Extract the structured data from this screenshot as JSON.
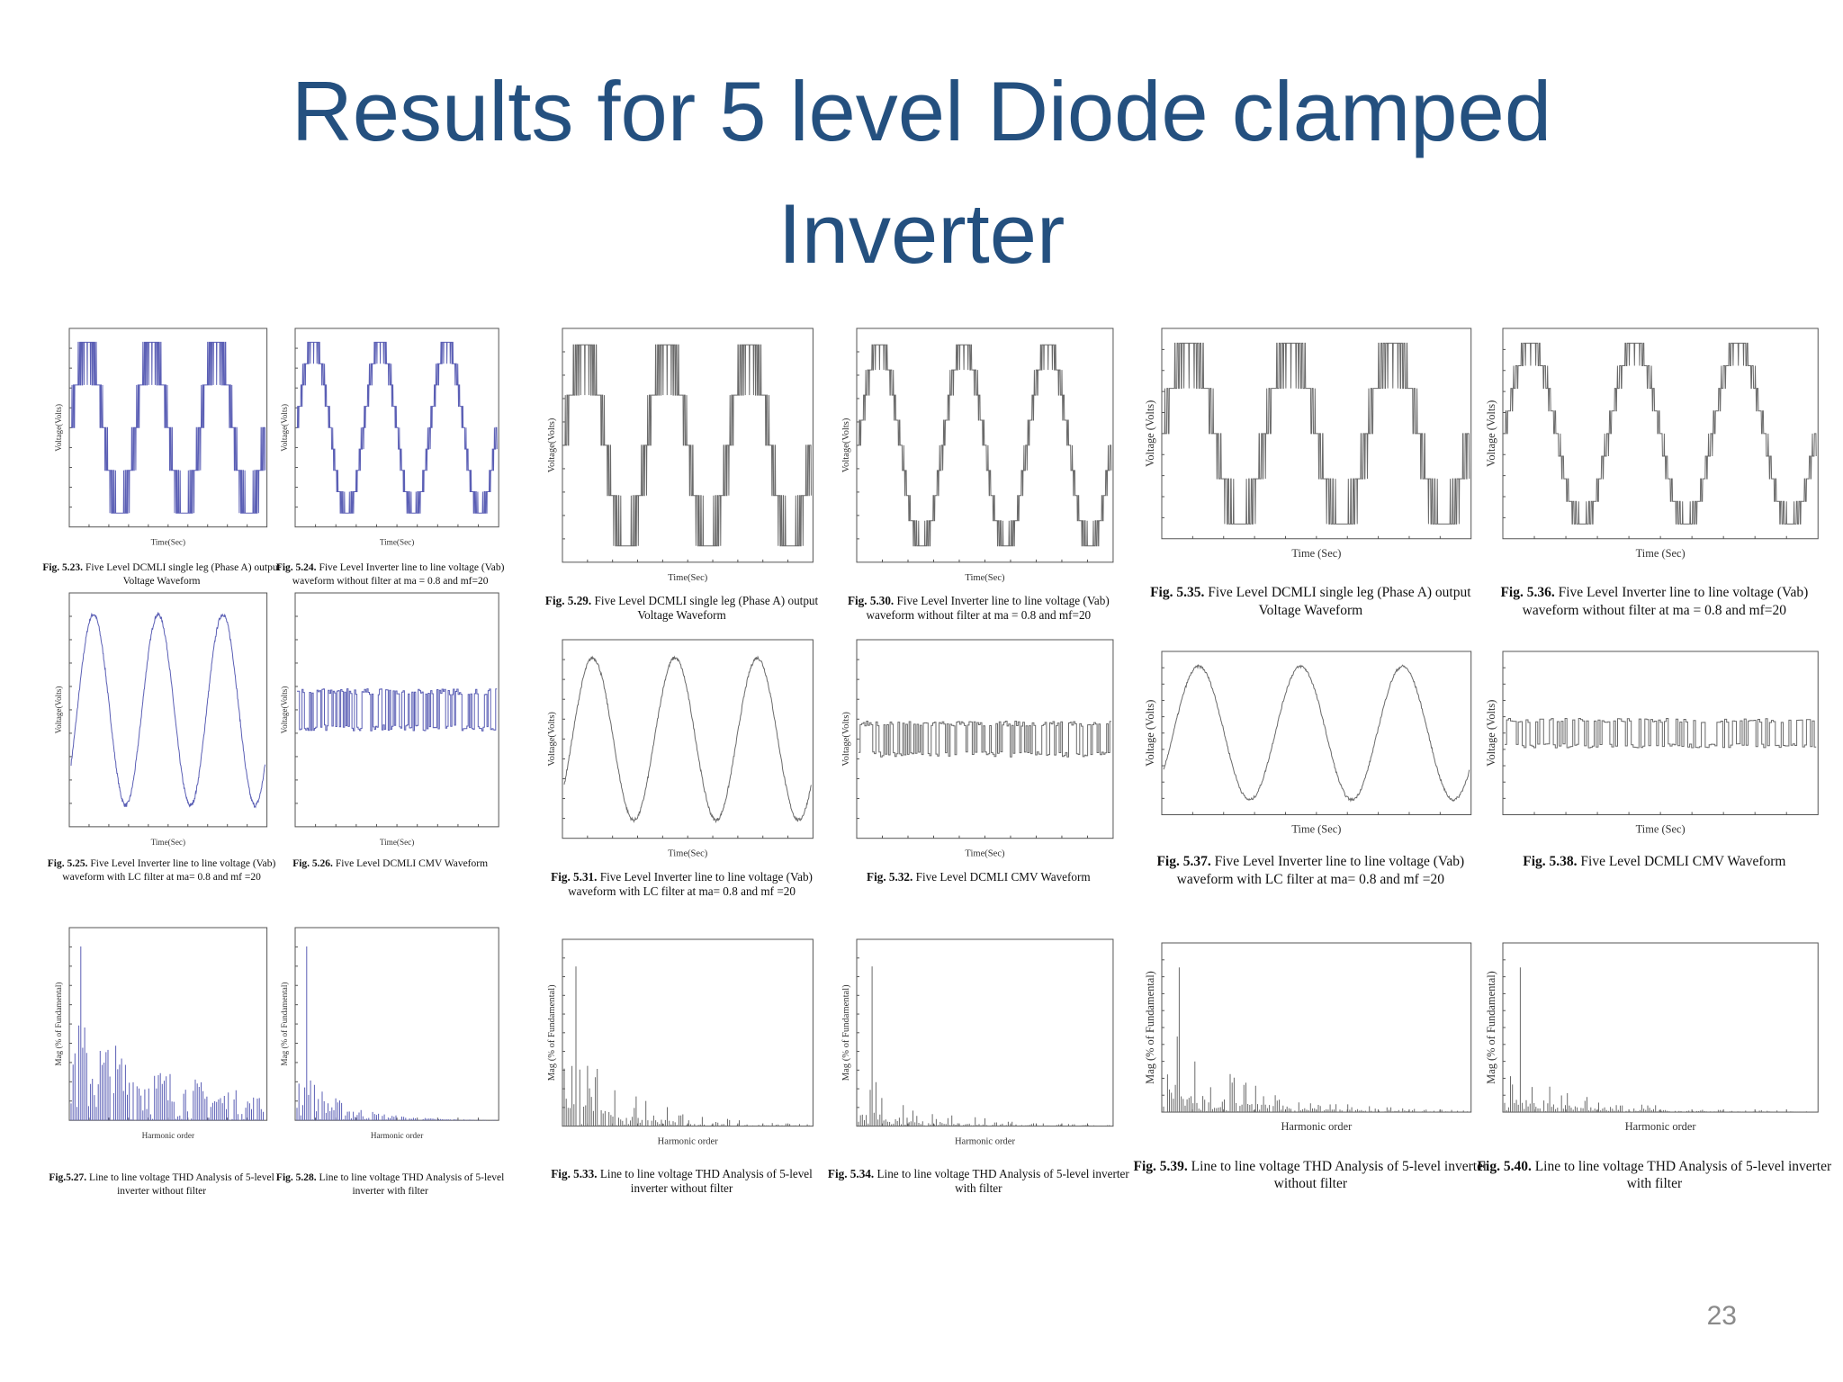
{
  "header": {
    "title": "Results for 5 level Diode clamped Inverter"
  },
  "figures": [
    {
      "label": "Fig. 5.23.",
      "caption": "Five Level DCMLI single leg (Phase A) output Voltage Waveform",
      "xlabel": "Time(Sec)",
      "ylabel": "Voltage(Volts)"
    },
    {
      "label": "Fig. 5.24.",
      "caption": "Five Level Inverter line to line voltage (Vab) waveform without filter at ma = 0.8 and mf=20",
      "xlabel": "Time(Sec)",
      "ylabel": "Voltage(Volts)"
    },
    {
      "label": "Fig. 5.25.",
      "caption": "Five Level Inverter line to line voltage (Vab) waveform with LC filter at ma= 0.8 and mf =20",
      "xlabel": "Time(Sec)",
      "ylabel": "Voltage(Volts)"
    },
    {
      "label": "Fig. 5.26.",
      "caption": "Five Level DCMLI CMV Waveform",
      "xlabel": "Time(Sec)",
      "ylabel": "Voltage(Volts)"
    },
    {
      "label": "Fig.5.27.",
      "caption": "Line to line voltage THD Analysis of 5-level inverter without filter",
      "xlabel": "Harmonic order",
      "ylabel": "Mag (% of Fundamental)"
    },
    {
      "label": "Fig. 5.28.",
      "caption": "Line to line voltage THD Analysis of 5-level inverter with filter",
      "xlabel": "Harmonic order",
      "ylabel": "Mag (% of Fundamental)"
    },
    {
      "label": "Fig. 5.29.",
      "caption": "Five Level DCMLI single leg (Phase A) output Voltage Waveform",
      "xlabel": "Time(Sec)",
      "ylabel": "Voltage(Volts)"
    },
    {
      "label": "Fig. 5.30.",
      "caption": "Five Level Inverter line to line voltage (Vab) waveform without filter at ma = 0.8 and mf=20",
      "xlabel": "Time(Sec)",
      "ylabel": "Voltage(Volts)"
    },
    {
      "label": "Fig. 5.31.",
      "caption": "Five Level Inverter line to line voltage (Vab) waveform with LC filter at ma= 0.8 and mf =20",
      "xlabel": "Time(Sec)",
      "ylabel": "Voltage(Volts)"
    },
    {
      "label": "Fig. 5.32.",
      "caption": "Five Level DCMLI CMV Waveform",
      "xlabel": "Time(Sec)",
      "ylabel": "Voltage(Volts)"
    },
    {
      "label": "Fig. 5.33.",
      "caption": "Line to line voltage THD Analysis of 5-level inverter without filter",
      "xlabel": "Harmonic order",
      "ylabel": "Mag (% of Fundamental)"
    },
    {
      "label": "Fig. 5.34.",
      "caption": "Line to line voltage THD Analysis of 5-level inverter with filter",
      "xlabel": "Harmonic order",
      "ylabel": "Mag (% of Fundamental)"
    },
    {
      "label": "Fig. 5.35.",
      "caption": "Five Level DCMLI single leg (Phase A) output Voltage Waveform",
      "xlabel": "Time (Sec)",
      "ylabel": "Voltage (Volts)"
    },
    {
      "label": "Fig. 5.36.",
      "caption": "Five Level Inverter line to line voltage (Vab) waveform without filter at ma = 0.8 and mf=20",
      "xlabel": "Time (Sec)",
      "ylabel": "Voltage (Volts)"
    },
    {
      "label": "Fig. 5.37.",
      "caption": "Five Level Inverter line to line voltage (Vab) waveform with LC filter at ma= 0.8 and mf =20",
      "xlabel": "Time (Sec)",
      "ylabel": "Voltage (Volts)"
    },
    {
      "label": "Fig. 5.38.",
      "caption": "Five Level DCMLI CMV Waveform",
      "xlabel": "Time (Sec)",
      "ylabel": "Voltage (Volts)"
    },
    {
      "label": "Fig. 5.39.",
      "caption": "Line to line voltage THD Analysis of 5-level inverter without filter",
      "xlabel": "Harmonic order",
      "ylabel": "Mag (% of Fundamental)"
    },
    {
      "label": "Fig. 5.40.",
      "caption": "Line to line voltage THD Analysis of 5-level inverter with filter",
      "xlabel": "Harmonic order",
      "ylabel": "Mag (% of Fundamental)"
    }
  ],
  "footer": {
    "page_number": "23"
  }
}
